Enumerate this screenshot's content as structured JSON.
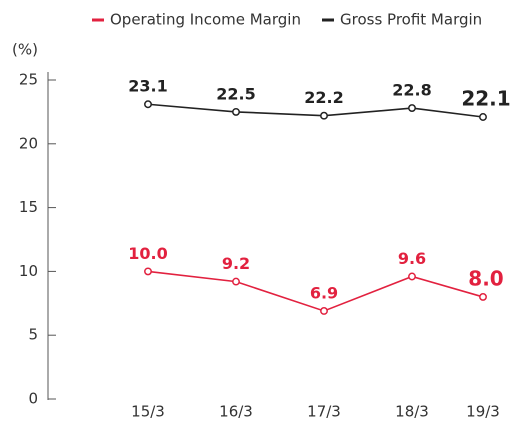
{
  "chart_data": {
    "type": "line",
    "y_unit_label": "(%)",
    "categories": [
      "15/3",
      "16/3",
      "17/3",
      "18/3",
      "19/3"
    ],
    "series": [
      {
        "name": "Operating Income Margin",
        "color": "#e2213f",
        "values": [
          10.0,
          9.2,
          6.9,
          9.6,
          8.0
        ],
        "value_labels": [
          "10.0",
          "9.2",
          "6.9",
          "9.6",
          "8.0"
        ]
      },
      {
        "name": "Gross Profit Margin",
        "color": "#222222",
        "values": [
          23.1,
          22.5,
          22.2,
          22.8,
          22.1
        ],
        "value_labels": [
          "23.1",
          "22.5",
          "22.2",
          "22.8",
          "22.1"
        ]
      }
    ],
    "ylim": [
      0,
      25
    ],
    "yticks": [
      0,
      5,
      10,
      15,
      20,
      25
    ],
    "grid": false,
    "legend": "top"
  }
}
